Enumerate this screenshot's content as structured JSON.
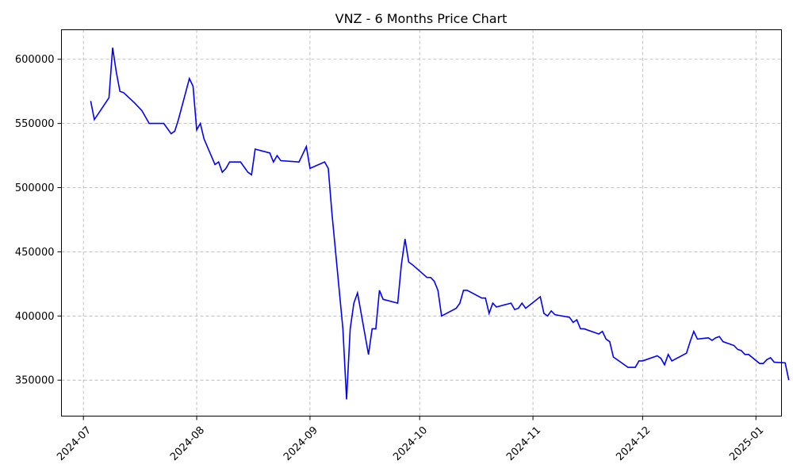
{
  "chart_data": {
    "type": "line",
    "title": "VNZ - 6 Months Price Chart",
    "xlabel": "",
    "ylabel": "",
    "grid": true,
    "x_ticks": [
      "2024-07",
      "2024-08",
      "2024-09",
      "2024-10",
      "2024-11",
      "2024-12",
      "2025-01"
    ],
    "y_ticks": [
      "350000",
      "400000",
      "450000",
      "500000",
      "550000",
      "600000"
    ],
    "y_tick_values": [
      350000,
      400000,
      450000,
      500000,
      550000,
      600000
    ],
    "xlim": [
      "2024-06-25",
      "2025-01-08"
    ],
    "ylim": [
      322000,
      623000
    ],
    "series": [
      {
        "color": "#0000ff",
        "points": [
          [
            "2024-07-03",
            567500
          ],
          [
            "2024-07-04",
            553000
          ],
          [
            "2024-07-08",
            570000
          ],
          [
            "2024-07-09",
            609000
          ],
          [
            "2024-07-10",
            590000
          ],
          [
            "2024-07-11",
            575000
          ],
          [
            "2024-07-12",
            574000
          ],
          [
            "2024-07-15",
            566000
          ],
          [
            "2024-07-16",
            563000
          ],
          [
            "2024-07-17",
            560000
          ],
          [
            "2024-07-18",
            555000
          ],
          [
            "2024-07-19",
            550000
          ],
          [
            "2024-07-22",
            550000
          ],
          [
            "2024-07-23",
            550000
          ],
          [
            "2024-07-24",
            546000
          ],
          [
            "2024-07-25",
            542000
          ],
          [
            "2024-07-26",
            544000
          ],
          [
            "2024-07-27",
            553000
          ],
          [
            "2024-07-30",
            585000
          ],
          [
            "2024-07-31",
            579000
          ],
          [
            "2024-08-01",
            545000
          ],
          [
            "2024-08-02",
            550000
          ],
          [
            "2024-08-03",
            538000
          ],
          [
            "2024-08-06",
            518000
          ],
          [
            "2024-08-07",
            520000
          ],
          [
            "2024-08-08",
            512000
          ],
          [
            "2024-08-09",
            515000
          ],
          [
            "2024-08-10",
            520000
          ],
          [
            "2024-08-13",
            520000
          ],
          [
            "2024-08-14",
            516000
          ],
          [
            "2024-08-15",
            512000
          ],
          [
            "2024-08-16",
            510000
          ],
          [
            "2024-08-17",
            530000
          ],
          [
            "2024-08-21",
            527000
          ],
          [
            "2024-08-22",
            520000
          ],
          [
            "2024-08-23",
            525000
          ],
          [
            "2024-08-24",
            521000
          ],
          [
            "2024-08-29",
            520000
          ],
          [
            "2024-08-31",
            532000
          ],
          [
            "2024-09-01",
            515000
          ],
          [
            "2024-09-05",
            520000
          ],
          [
            "2024-09-06",
            515000
          ],
          [
            "2024-09-07",
            480000
          ],
          [
            "2024-09-10",
            390000
          ],
          [
            "2024-09-11",
            335000
          ],
          [
            "2024-09-12",
            390000
          ],
          [
            "2024-09-13",
            410000
          ],
          [
            "2024-09-14",
            418000
          ],
          [
            "2024-09-17",
            370000
          ],
          [
            "2024-09-18",
            390000
          ],
          [
            "2024-09-19",
            390000
          ],
          [
            "2024-09-20",
            420000
          ],
          [
            "2024-09-21",
            413000
          ],
          [
            "2024-09-25",
            410000
          ],
          [
            "2024-09-26",
            440000
          ],
          [
            "2024-09-27",
            460000
          ],
          [
            "2024-09-28",
            442000
          ],
          [
            "2024-09-29",
            440000
          ],
          [
            "2024-10-03",
            430000
          ],
          [
            "2024-10-04",
            430000
          ],
          [
            "2024-10-05",
            427000
          ],
          [
            "2024-10-06",
            420000
          ],
          [
            "2024-10-07",
            400000
          ],
          [
            "2024-10-11",
            406000
          ],
          [
            "2024-10-12",
            410000
          ],
          [
            "2024-10-13",
            420000
          ],
          [
            "2024-10-14",
            420000
          ],
          [
            "2024-10-18",
            414000
          ],
          [
            "2024-10-19",
            414000
          ],
          [
            "2024-10-20",
            402000
          ],
          [
            "2024-10-21",
            410000
          ],
          [
            "2024-10-22",
            407000
          ],
          [
            "2024-10-26",
            410000
          ],
          [
            "2024-10-27",
            405000
          ],
          [
            "2024-10-28",
            406000
          ],
          [
            "2024-10-29",
            410000
          ],
          [
            "2024-10-30",
            406000
          ],
          [
            "2024-11-03",
            415000
          ],
          [
            "2024-11-04",
            402000
          ],
          [
            "2024-11-05",
            400000
          ],
          [
            "2024-11-06",
            404000
          ],
          [
            "2024-11-07",
            401000
          ],
          [
            "2024-11-11",
            399000
          ],
          [
            "2024-11-12",
            395000
          ],
          [
            "2024-11-13",
            397000
          ],
          [
            "2024-11-14",
            390000
          ],
          [
            "2024-11-15",
            390000
          ],
          [
            "2024-11-19",
            386000
          ],
          [
            "2024-11-20",
            388000
          ],
          [
            "2024-11-21",
            382000
          ],
          [
            "2024-11-22",
            380000
          ],
          [
            "2024-11-23",
            368000
          ],
          [
            "2024-11-26",
            362000
          ],
          [
            "2024-11-27",
            360000
          ],
          [
            "2024-11-29",
            360000
          ],
          [
            "2024-11-30",
            365000
          ],
          [
            "2024-12-01",
            365000
          ],
          [
            "2024-12-02",
            366000
          ],
          [
            "2024-12-05",
            369000
          ],
          [
            "2024-12-06",
            367000
          ],
          [
            "2024-12-07",
            362000
          ],
          [
            "2024-12-08",
            370000
          ],
          [
            "2024-12-09",
            365000
          ],
          [
            "2024-12-13",
            371000
          ],
          [
            "2024-12-14",
            380000
          ],
          [
            "2024-12-15",
            388000
          ],
          [
            "2024-12-16",
            382000
          ],
          [
            "2024-12-19",
            383000
          ],
          [
            "2024-12-20",
            381000
          ],
          [
            "2024-12-21",
            383000
          ],
          [
            "2024-12-22",
            384000
          ],
          [
            "2024-12-23",
            380000
          ],
          [
            "2024-12-26",
            377000
          ],
          [
            "2024-12-27",
            374000
          ],
          [
            "2024-12-28",
            373000
          ],
          [
            "2024-12-29",
            370000
          ],
          [
            "2024-12-30",
            370000
          ],
          [
            "2025-01-02",
            363000
          ],
          [
            "2025-01-03",
            363000
          ],
          [
            "2025-01-04",
            366000
          ],
          [
            "2025-01-05",
            367500
          ],
          [
            "2025-01-06",
            364000
          ],
          [
            "2025-01-09",
            363500
          ],
          [
            "2025-01-10",
            350000
          ]
        ]
      }
    ]
  }
}
